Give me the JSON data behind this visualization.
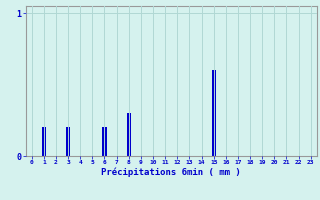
{
  "hours": [
    0,
    1,
    2,
    3,
    4,
    5,
    6,
    7,
    8,
    9,
    10,
    11,
    12,
    13,
    14,
    15,
    16,
    17,
    18,
    19,
    20,
    21,
    22,
    23
  ],
  "values": [
    0,
    0.2,
    0,
    0.2,
    0,
    0,
    0.2,
    0,
    0.3,
    0,
    0,
    0,
    0,
    0,
    0,
    0.6,
    0,
    0,
    0,
    0,
    0,
    0,
    0,
    0
  ],
  "bar_color": "#0000cc",
  "bg_color": "#d5f2ee",
  "grid_color": "#b0d8d4",
  "axis_color": "#999999",
  "text_color": "#0000cc",
  "ylim": [
    0,
    1.05
  ],
  "xlabel": "Précipitations 6min ( mm )"
}
